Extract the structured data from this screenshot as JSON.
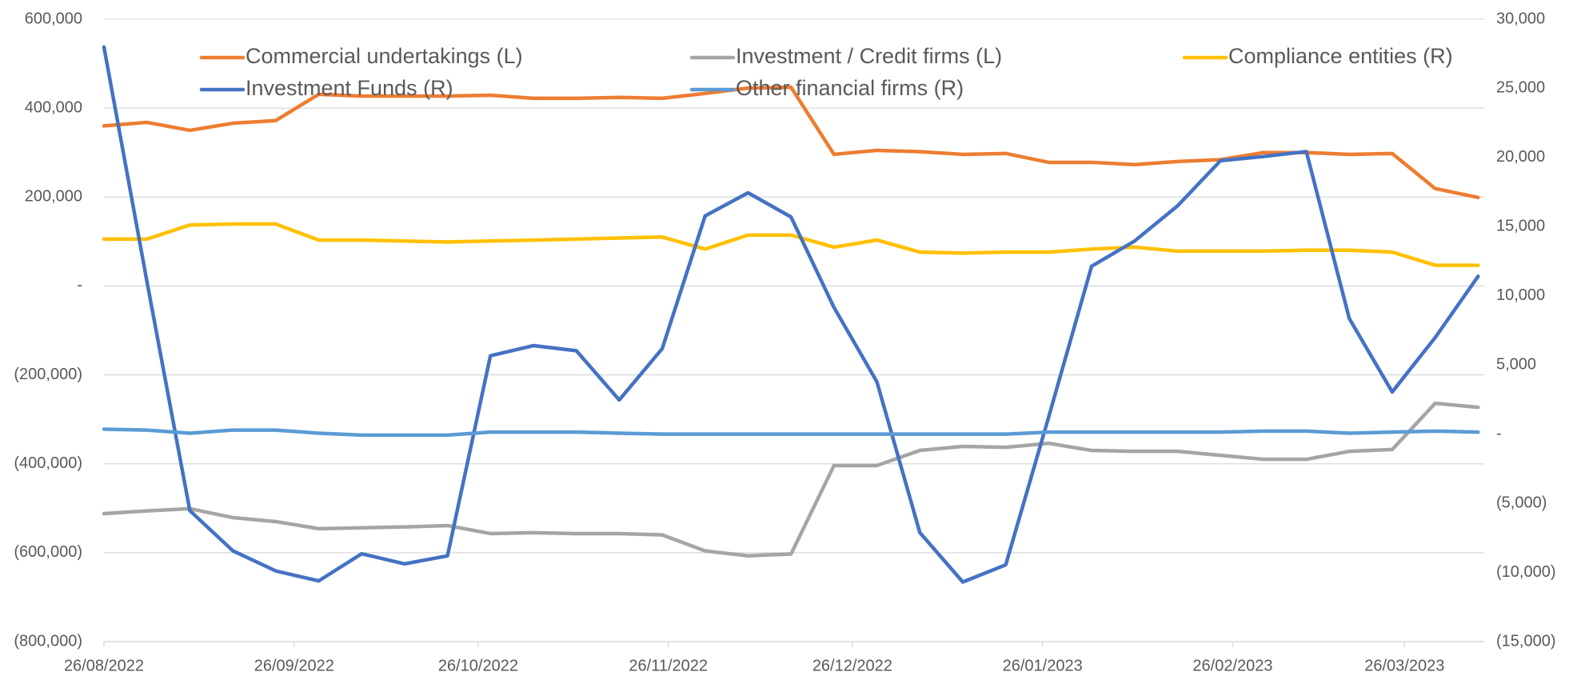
{
  "chart_data": {
    "type": "line",
    "x": [
      "2022-08-26",
      "2022-09-02",
      "2022-09-09",
      "2022-09-16",
      "2022-09-23",
      "2022-09-30",
      "2022-10-07",
      "2022-10-14",
      "2022-10-21",
      "2022-10-28",
      "2022-11-04",
      "2022-11-11",
      "2022-11-18",
      "2022-11-25",
      "2022-12-02",
      "2022-12-09",
      "2022-12-16",
      "2022-12-23",
      "2022-12-30",
      "2023-01-06",
      "2023-01-13",
      "2023-01-20",
      "2023-01-27",
      "2023-02-03",
      "2023-02-10",
      "2023-02-17",
      "2023-02-24",
      "2023-03-03",
      "2023-03-10",
      "2023-03-17",
      "2023-03-24",
      "2023-03-31",
      "2023-04-07"
    ],
    "xlim": [
      "2022-08-26",
      "2023-04-08"
    ],
    "xticks": [
      {
        "value": "2022-08-26",
        "label": "26/08/2022"
      },
      {
        "value": "2022-09-26",
        "label": "26/09/2022"
      },
      {
        "value": "2022-10-26",
        "label": "26/10/2022"
      },
      {
        "value": "2022-11-26",
        "label": "26/11/2022"
      },
      {
        "value": "2022-12-26",
        "label": "26/12/2022"
      },
      {
        "value": "2023-01-26",
        "label": "26/01/2023"
      },
      {
        "value": "2023-02-26",
        "label": "26/02/2023"
      },
      {
        "value": "2023-03-26",
        "label": "26/03/2023"
      }
    ],
    "ylim": [
      -800000,
      600000
    ],
    "yticks": [
      {
        "value": 600000,
        "label": "600,000"
      },
      {
        "value": 400000,
        "label": "400,000"
      },
      {
        "value": 200000,
        "label": "200,000"
      },
      {
        "value": 0,
        "label": "-"
      },
      {
        "value": -200000,
        "label": "(200,000)"
      },
      {
        "value": -400000,
        "label": "(400,000)"
      },
      {
        "value": -600000,
        "label": "(600,000)"
      },
      {
        "value": -800000,
        "label": "(800,000)"
      }
    ],
    "y2lim": [
      -15000,
      30000
    ],
    "y2ticks": [
      {
        "value": 30000,
        "label": "30,000"
      },
      {
        "value": 25000,
        "label": "25,000"
      },
      {
        "value": 20000,
        "label": "20,000"
      },
      {
        "value": 15000,
        "label": "15,000"
      },
      {
        "value": 10000,
        "label": "10,000"
      },
      {
        "value": 5000,
        "label": "5,000"
      },
      {
        "value": 0,
        "label": "-"
      },
      {
        "value": -5000,
        "label": "(5,000)"
      },
      {
        "value": -10000,
        "label": "(10,000)"
      },
      {
        "value": -15000,
        "label": "(15,000)"
      }
    ],
    "grid": true,
    "series": [
      {
        "name": "Commercial undertakings (L)",
        "color": "#ed7d31",
        "axis": "y",
        "values": [
          360000,
          368000,
          350000,
          366000,
          372000,
          431000,
          427000,
          427000,
          427000,
          429000,
          422000,
          422000,
          424000,
          422000,
          433000,
          445000,
          447000,
          296000,
          305000,
          302000,
          296000,
          298000,
          278000,
          278000,
          273000,
          280000,
          284000,
          300000,
          300000,
          296000,
          298000,
          219000,
          199000
        ]
      },
      {
        "name": "Investment / Credit firms (L)",
        "color": "#a5a5a5",
        "axis": "y",
        "values": [
          -512000,
          -506000,
          -501000,
          -521000,
          -530000,
          -546000,
          -544000,
          -542000,
          -539000,
          -557000,
          -555000,
          -557000,
          -557000,
          -560000,
          -596000,
          -607000,
          -603000,
          -404000,
          -404000,
          -370000,
          -361000,
          -363000,
          -354000,
          -370000,
          -372000,
          -372000,
          -381000,
          -390000,
          -390000,
          -372000,
          -368000,
          -264000,
          -273000
        ]
      },
      {
        "name": "Compliance entities (R)",
        "color": "#ffc000",
        "axis": "y2",
        "values": [
          14100,
          14100,
          15120,
          15190,
          15190,
          14030,
          14030,
          13960,
          13890,
          13960,
          14030,
          14100,
          14180,
          14250,
          13380,
          14390,
          14390,
          13520,
          14030,
          13160,
          13090,
          13160,
          13160,
          13380,
          13520,
          13230,
          13230,
          13230,
          13300,
          13300,
          13160,
          12210,
          12210
        ]
      },
      {
        "name": "Investment Funds (R)",
        "color": "#4472c4",
        "axis": "y2",
        "values": [
          27990,
          11050,
          -5530,
          -8430,
          -9890,
          -10610,
          -8650,
          -9380,
          -8800,
          5670,
          6400,
          6030,
          2470,
          6180,
          15780,
          17450,
          15700,
          9160,
          3780,
          -7120,
          -10690,
          -9450,
          1240,
          12140,
          13960,
          16500,
          19770,
          20070,
          20430,
          8360,
          3050,
          6980,
          11410
        ]
      },
      {
        "name": "Other financial firms (R)",
        "color": "#5b9bd5",
        "axis": "y2",
        "values": [
          360,
          290,
          70,
          290,
          290,
          70,
          -70,
          -70,
          -70,
          150,
          150,
          150,
          70,
          0,
          0,
          0,
          0,
          0,
          0,
          0,
          0,
          0,
          150,
          150,
          150,
          150,
          150,
          220,
          220,
          70,
          150,
          220,
          150
        ]
      }
    ]
  }
}
